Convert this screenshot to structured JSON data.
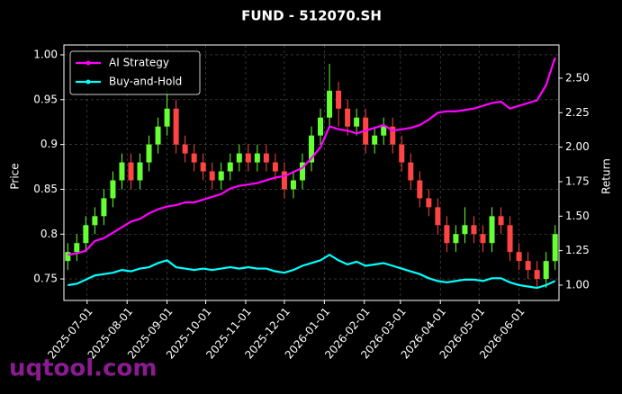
{
  "chart_data": {
    "type": "candlestick",
    "title": "FUND - 512070.SH",
    "ylabel": "Price",
    "y2label": "Return",
    "watermark": "uqtool.com",
    "x": [
      "2025-06-16",
      "2025-06-23",
      "2025-06-30",
      "2025-07-07",
      "2025-07-14",
      "2025-07-21",
      "2025-07-28",
      "2025-08-04",
      "2025-08-11",
      "2025-08-18",
      "2025-08-25",
      "2025-09-01",
      "2025-09-08",
      "2025-09-15",
      "2025-09-22",
      "2025-09-29",
      "2025-10-06",
      "2025-10-13",
      "2025-10-20",
      "2025-10-27",
      "2025-11-03",
      "2025-11-10",
      "2025-11-17",
      "2025-11-24",
      "2025-12-01",
      "2025-12-08",
      "2025-12-15",
      "2025-12-22",
      "2025-12-29",
      "2026-01-05",
      "2026-01-12",
      "2026-01-19",
      "2026-01-26",
      "2026-02-02",
      "2026-02-09",
      "2026-02-16",
      "2026-02-23",
      "2026-03-02",
      "2026-03-09",
      "2026-03-16",
      "2026-03-23",
      "2026-03-30",
      "2026-04-06",
      "2026-04-13",
      "2026-04-20",
      "2026-04-27",
      "2026-05-04",
      "2026-05-11",
      "2026-05-18",
      "2026-05-25",
      "2026-06-01",
      "2026-06-08",
      "2026-06-15",
      "2026-06-22",
      "2026-06-29"
    ],
    "open": [
      0.77,
      0.78,
      0.79,
      0.81,
      0.82,
      0.84,
      0.86,
      0.88,
      0.86,
      0.88,
      0.9,
      0.92,
      0.94,
      0.9,
      0.89,
      0.88,
      0.87,
      0.86,
      0.87,
      0.88,
      0.89,
      0.88,
      0.89,
      0.88,
      0.87,
      0.85,
      0.86,
      0.88,
      0.91,
      0.93,
      0.96,
      0.94,
      0.92,
      0.93,
      0.9,
      0.91,
      0.92,
      0.9,
      0.88,
      0.86,
      0.84,
      0.83,
      0.81,
      0.79,
      0.8,
      0.81,
      0.8,
      0.79,
      0.82,
      0.81,
      0.78,
      0.77,
      0.76,
      0.75,
      0.77
    ],
    "high": [
      0.79,
      0.8,
      0.82,
      0.83,
      0.85,
      0.87,
      0.89,
      0.89,
      0.89,
      0.91,
      0.93,
      0.96,
      0.95,
      0.91,
      0.9,
      0.89,
      0.88,
      0.88,
      0.89,
      0.9,
      0.9,
      0.9,
      0.9,
      0.89,
      0.88,
      0.87,
      0.89,
      0.92,
      0.94,
      0.99,
      0.97,
      0.95,
      0.94,
      0.94,
      0.92,
      0.93,
      0.93,
      0.91,
      0.89,
      0.87,
      0.85,
      0.84,
      0.82,
      0.81,
      0.83,
      0.82,
      0.81,
      0.83,
      0.83,
      0.82,
      0.79,
      0.78,
      0.77,
      0.78,
      0.81
    ],
    "low": [
      0.76,
      0.77,
      0.78,
      0.8,
      0.81,
      0.83,
      0.85,
      0.85,
      0.85,
      0.87,
      0.89,
      0.91,
      0.89,
      0.88,
      0.87,
      0.86,
      0.85,
      0.85,
      0.86,
      0.87,
      0.87,
      0.87,
      0.87,
      0.86,
      0.84,
      0.84,
      0.85,
      0.87,
      0.9,
      0.92,
      0.92,
      0.91,
      0.91,
      0.89,
      0.89,
      0.9,
      0.89,
      0.87,
      0.85,
      0.83,
      0.82,
      0.8,
      0.78,
      0.78,
      0.79,
      0.79,
      0.78,
      0.78,
      0.8,
      0.77,
      0.76,
      0.75,
      0.74,
      0.74,
      0.76
    ],
    "close": [
      0.78,
      0.79,
      0.81,
      0.82,
      0.84,
      0.86,
      0.88,
      0.86,
      0.88,
      0.9,
      0.92,
      0.94,
      0.9,
      0.89,
      0.88,
      0.87,
      0.86,
      0.87,
      0.88,
      0.89,
      0.88,
      0.89,
      0.88,
      0.87,
      0.85,
      0.86,
      0.88,
      0.91,
      0.93,
      0.96,
      0.94,
      0.92,
      0.93,
      0.9,
      0.91,
      0.92,
      0.9,
      0.88,
      0.86,
      0.84,
      0.83,
      0.81,
      0.79,
      0.8,
      0.81,
      0.8,
      0.79,
      0.82,
      0.81,
      0.78,
      0.77,
      0.76,
      0.75,
      0.77,
      0.8
    ],
    "up_color": "#66ff33",
    "down_color": "#ff4444",
    "series": [
      {
        "name": "AI Strategy",
        "color": "#ff00ff",
        "axis": "y2",
        "values": [
          1.22,
          1.23,
          1.25,
          1.32,
          1.34,
          1.38,
          1.42,
          1.46,
          1.48,
          1.52,
          1.55,
          1.57,
          1.58,
          1.6,
          1.6,
          1.62,
          1.64,
          1.66,
          1.7,
          1.72,
          1.73,
          1.74,
          1.76,
          1.78,
          1.79,
          1.82,
          1.85,
          1.92,
          2.0,
          2.15,
          2.13,
          2.12,
          2.1,
          2.12,
          2.14,
          2.16,
          2.12,
          2.13,
          2.14,
          2.16,
          2.2,
          2.25,
          2.26,
          2.26,
          2.27,
          2.28,
          2.3,
          2.32,
          2.33,
          2.28,
          2.3,
          2.32,
          2.34,
          2.45,
          2.65
        ]
      },
      {
        "name": "Buy-and-Hold",
        "color": "#00ffff",
        "axis": "y2",
        "values": [
          1.0,
          1.01,
          1.04,
          1.07,
          1.08,
          1.09,
          1.11,
          1.1,
          1.12,
          1.13,
          1.16,
          1.18,
          1.13,
          1.12,
          1.11,
          1.12,
          1.11,
          1.12,
          1.13,
          1.12,
          1.13,
          1.12,
          1.12,
          1.1,
          1.09,
          1.11,
          1.14,
          1.16,
          1.18,
          1.22,
          1.18,
          1.15,
          1.17,
          1.14,
          1.15,
          1.16,
          1.14,
          1.12,
          1.1,
          1.08,
          1.05,
          1.03,
          1.02,
          1.03,
          1.04,
          1.04,
          1.03,
          1.05,
          1.05,
          1.02,
          1.0,
          0.99,
          0.98,
          1.0,
          1.03
        ]
      }
    ],
    "xlim": [
      "2025-06-13",
      "2026-07-02"
    ],
    "xticks": [
      "2025-07-01",
      "2025-08-01",
      "2025-09-01",
      "2025-10-01",
      "2025-11-01",
      "2025-12-01",
      "2026-01-01",
      "2026-02-01",
      "2026-03-01",
      "2026-04-01",
      "2026-05-01",
      "2026-06-01"
    ],
    "ylim": [
      0.726,
      1.011
    ],
    "yticks": [
      0.75,
      0.8,
      0.85,
      0.9,
      0.95,
      {
        "value": 1,
        "label": "1.00"
      }
    ],
    "y2lim": [
      0.889,
      2.741
    ],
    "y2ticks": [
      {
        "value": 1,
        "label": "1.00"
      },
      1.25,
      {
        "value": 1.5,
        "label": "1.50"
      },
      1.75,
      {
        "value": 2,
        "label": "2.00"
      },
      2.25,
      {
        "value": 2.5,
        "label": "2.50"
      }
    ],
    "grid": true,
    "legend": "upper left"
  }
}
